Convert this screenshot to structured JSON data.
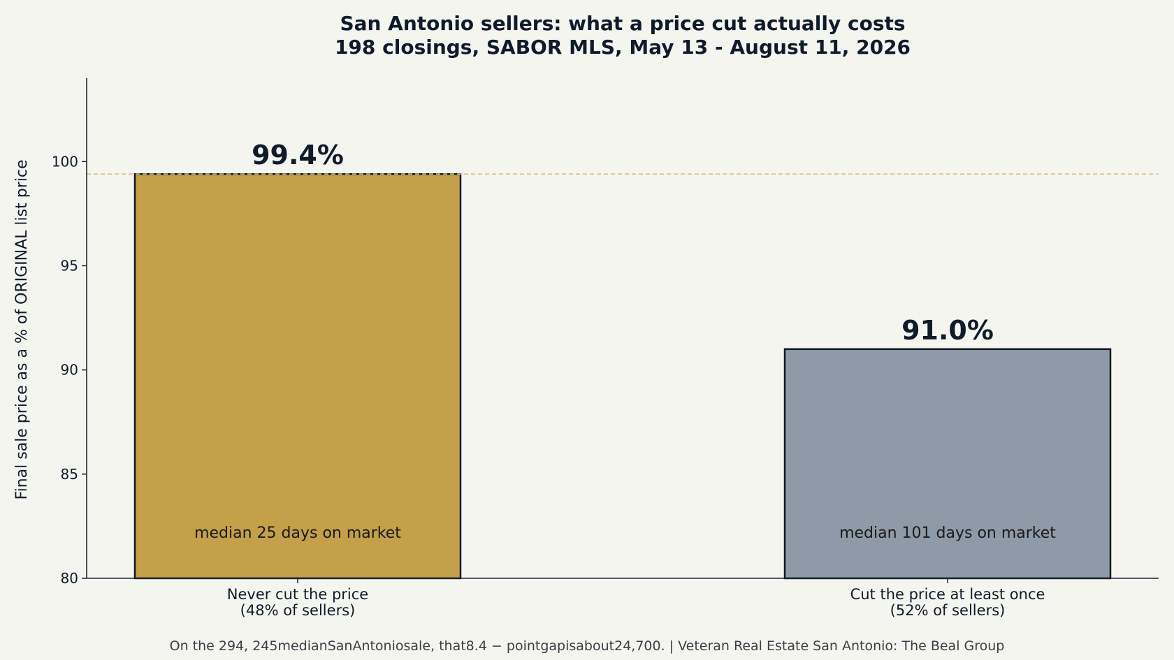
{
  "chart_data": {
    "type": "bar",
    "title": "San Antonio sellers: what a price cut actually costs",
    "subtitle": "198 closings, SABOR MLS, May 13 - August 11, 2026",
    "ylabel": "Final sale price as a % of ORIGINAL list price",
    "xlabel": "",
    "ylim": [
      80,
      104
    ],
    "yticks": [
      80,
      85,
      90,
      95,
      100
    ],
    "grid": false,
    "reference_line": {
      "value": 99.4,
      "color": "#d9bf85",
      "style": "dashed"
    },
    "categories": [
      {
        "label_line1": "Never cut the price",
        "label_line2": "(48% of sellers)"
      },
      {
        "label_line1": "Cut the price at least once",
        "label_line2": "(52% of sellers)"
      }
    ],
    "values": [
      99.4,
      91.0
    ],
    "value_labels": [
      "99.4%",
      "91.0%"
    ],
    "inner_labels": [
      "median 25 days on market",
      "median 101 days on market"
    ],
    "bar_colors": [
      "#c4a04b",
      "#8e9aa8"
    ],
    "bar_edge_color": "#111820",
    "footer": "On the $294,245 median San Antonio sale, that 8.4-point gap is about $24,700.  |  Veteran Real Estate San Antonio: The Beal Group"
  },
  "footer_display": "On the 294, 245medianSanAntoniosale, that8.4 − pointgapisabout24,700.  |  Veteran Real Estate San Antonio: The Beal Group"
}
